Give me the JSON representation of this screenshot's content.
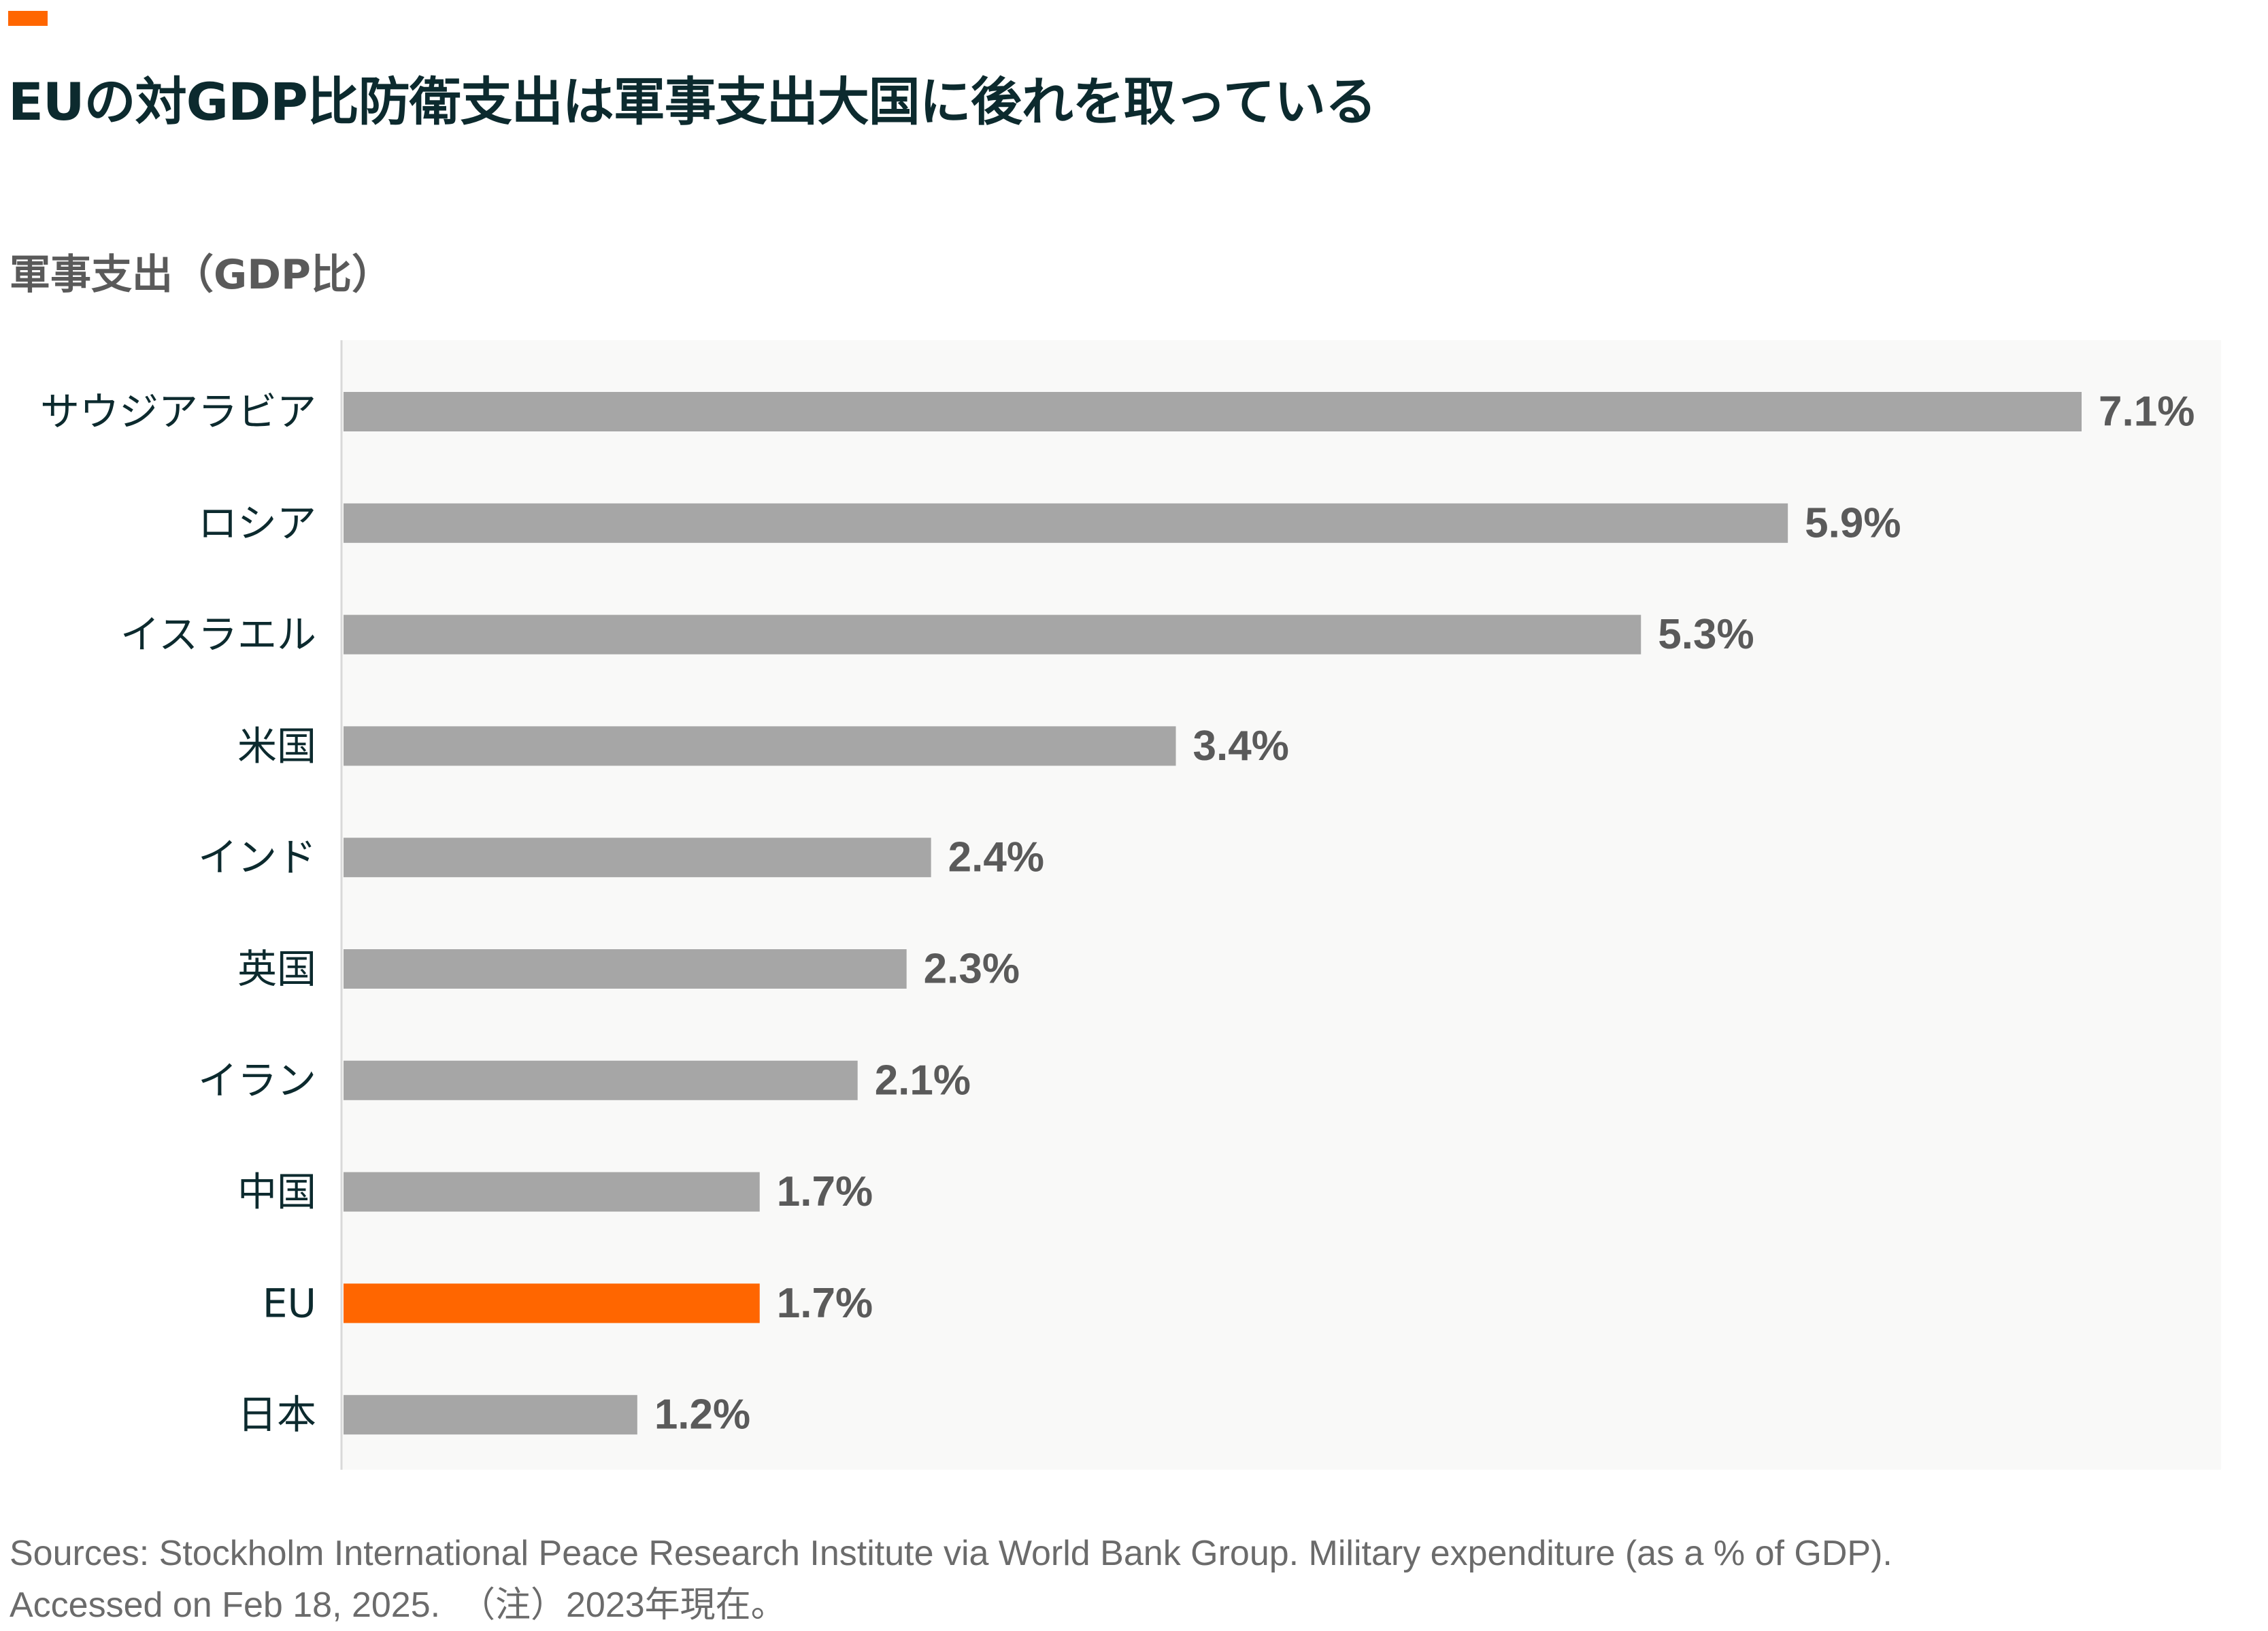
{
  "header": {
    "title": "EUの対GDP比防衛支出は軍事支出大国に後れを取っている",
    "subtitle": "軍事支出（GDP比）"
  },
  "chart_data": {
    "type": "bar",
    "orientation": "horizontal",
    "categories": [
      "サウジアラビア",
      "ロシア",
      "イスラエル",
      "米国",
      "インド",
      "英国",
      "イラン",
      "中国",
      "EU",
      "日本"
    ],
    "values": [
      7.1,
      5.9,
      5.3,
      3.4,
      2.4,
      2.3,
      2.1,
      1.7,
      1.7,
      1.2
    ],
    "value_labels": [
      "7.1%",
      "5.9%",
      "5.3%",
      "3.4%",
      "2.4%",
      "2.3%",
      "2.1%",
      "1.7%",
      "1.7%",
      "1.2%"
    ],
    "highlight_category": "EU",
    "xlim": [
      0,
      7.1
    ],
    "grid": false,
    "legend": "none"
  },
  "colors": {
    "accent": "#ff6600",
    "bar": "#a6a6a6",
    "highlight": "#ff6600",
    "plot_background": "#f9f9f8",
    "axis_line": "#d9d9d9",
    "category_label": "#0c2a2e",
    "value_label": "#5a5a5a"
  },
  "footer": {
    "sources_line1": "Sources: Stockholm International Peace Research Institute via World Bank Group. Military expenditure (as a % of GDP).",
    "sources_line2": "Accessed on Feb 18, 2025.  （注）2023年現在。"
  }
}
